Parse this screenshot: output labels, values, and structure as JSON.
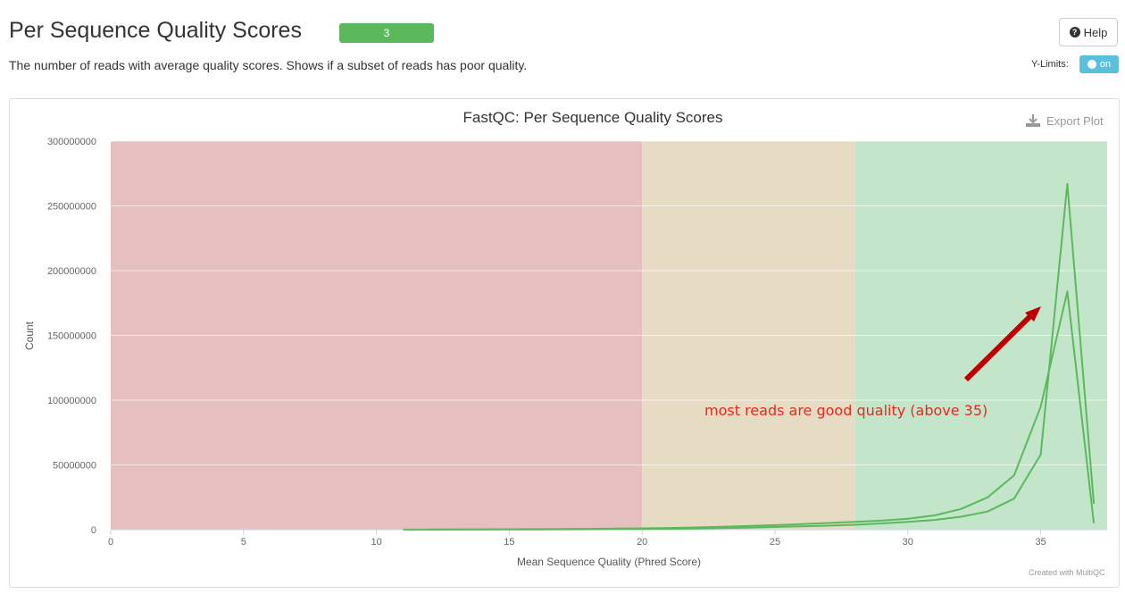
{
  "header": {
    "title": "Per Sequence Quality Scores",
    "badge": "3",
    "description": "The number of reads with average quality scores. Shows if a subset of reads has poor quality.",
    "help_label": "Help",
    "ylimits_label": "Y-Limits:",
    "toggle_label": "on"
  },
  "plot": {
    "export_label": "Export Plot",
    "credit": "Created with MultiQC",
    "annotation": "most reads are good quality (above 35)"
  },
  "colors": {
    "badge": "#5cb85c",
    "toggle": "#5bc0de",
    "zone_fail": "#e6c0c0",
    "zone_warn": "#e6dcc4",
    "zone_pass": "#c3e6cb",
    "line": "#5cb85c",
    "annotation": "#e8291c",
    "arrow": "#c00000"
  },
  "chart_data": {
    "type": "line",
    "title": "FastQC: Per Sequence Quality Scores",
    "xlabel": "Mean Sequence Quality (Phred Score)",
    "ylabel": "Count",
    "xlim": [
      0,
      37.5
    ],
    "ylim": [
      0,
      300000000
    ],
    "xticks": [
      0,
      5,
      10,
      15,
      20,
      25,
      30,
      35
    ],
    "yticks": [
      0,
      50000000,
      100000000,
      150000000,
      200000000,
      250000000,
      300000000
    ],
    "zones": [
      {
        "from": 0,
        "to": 20,
        "status": "fail"
      },
      {
        "from": 20,
        "to": 28,
        "status": "warn"
      },
      {
        "from": 28,
        "to": 37.5,
        "status": "pass"
      }
    ],
    "series": [
      {
        "x": [
          11,
          12,
          13,
          14,
          15,
          16,
          17,
          18,
          19,
          20,
          21,
          22,
          23,
          24,
          25,
          26,
          27,
          28,
          29,
          30,
          31,
          32,
          33,
          34,
          35,
          36,
          37
        ],
        "y": [
          80000,
          100000,
          120000,
          150000,
          180000,
          230000,
          280000,
          350000,
          450000,
          550000,
          700000,
          900000,
          1200000,
          1600000,
          2100000,
          2600000,
          3100000,
          3800000,
          4800000,
          6000000,
          7500000,
          10000000,
          14000000,
          24000000,
          58000000,
          267000000,
          20000000
        ]
      },
      {
        "x": [
          12,
          13,
          14,
          15,
          16,
          17,
          18,
          19,
          20,
          21,
          22,
          23,
          24,
          25,
          26,
          27,
          28,
          29,
          30,
          31,
          32,
          33,
          34,
          35,
          36,
          37
        ],
        "y": [
          150000,
          200000,
          260000,
          330000,
          420000,
          520000,
          650000,
          800000,
          1000000,
          1300000,
          1700000,
          2200000,
          2800000,
          3500000,
          4300000,
          5200000,
          6000000,
          7000000,
          8500000,
          11000000,
          16000000,
          25000000,
          42000000,
          95000000,
          184000000,
          5000000
        ]
      }
    ]
  }
}
